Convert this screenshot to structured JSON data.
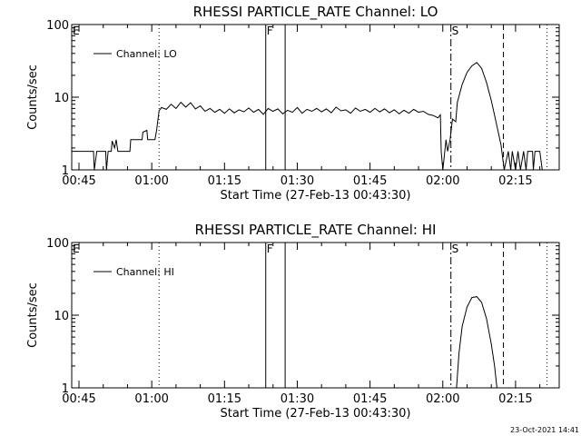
{
  "chart_data": [
    {
      "type": "line",
      "title": "RHESSI PARTICLE_RATE Channel: LO",
      "xlabel": "Start Time (27-Feb-13 00:43:30)",
      "ylabel": "Counts/sec",
      "yscale": "log",
      "ylim": [
        1,
        100
      ],
      "xlim": [
        "00:43:30",
        "02:24:00"
      ],
      "yticks": [
        "1",
        "10",
        "100"
      ],
      "xticks": [
        "00:45",
        "01:00",
        "01:15",
        "01:30",
        "01:45",
        "02:00",
        "02:15"
      ],
      "legend": {
        "label": "Channel: LO",
        "position": "top-left"
      },
      "grid": false,
      "markers": [
        {
          "label": "E",
          "time": "00:43:30",
          "style": "solid"
        },
        {
          "label": "",
          "time": "01:01:30",
          "style": "dotted"
        },
        {
          "label": "F",
          "time": "01:23:30",
          "style": "solid"
        },
        {
          "label": "",
          "time": "01:27:30",
          "style": "solid"
        },
        {
          "label": "S",
          "time": "02:01:40",
          "style": "dash-dot"
        },
        {
          "label": "",
          "time": "02:12:30",
          "style": "dashed"
        },
        {
          "label": "",
          "time": "02:21:30",
          "style": "dotted"
        }
      ],
      "series": [
        {
          "name": "Channel: LO",
          "points": [
            [
              "00:43:30",
              1.8
            ],
            [
              "00:48:00",
              1.8
            ],
            [
              "00:48:10",
              1.0
            ],
            [
              "00:48:40",
              1.8
            ],
            [
              "00:50:30",
              1.8
            ],
            [
              "00:50:40",
              1.0
            ],
            [
              "00:51:00",
              1.8
            ],
            [
              "00:51:40",
              1.8
            ],
            [
              "00:51:50",
              2.5
            ],
            [
              "00:52:20",
              2.0
            ],
            [
              "00:52:40",
              2.6
            ],
            [
              "00:53:00",
              1.8
            ],
            [
              "00:55:30",
              1.8
            ],
            [
              "00:55:40",
              2.6
            ],
            [
              "00:58:00",
              2.6
            ],
            [
              "00:58:10",
              3.3
            ],
            [
              "00:59:00",
              3.5
            ],
            [
              "00:59:10",
              2.6
            ],
            [
              "01:00:40",
              2.6
            ],
            [
              "01:01:00",
              3.5
            ],
            [
              "01:01:30",
              6.5
            ],
            [
              "01:02:00",
              7.2
            ],
            [
              "01:03:00",
              6.8
            ],
            [
              "01:04:00",
              8.0
            ],
            [
              "01:05:00",
              7.0
            ],
            [
              "01:06:00",
              8.5
            ],
            [
              "01:07:00",
              7.3
            ],
            [
              "01:08:00",
              8.4
            ],
            [
              "01:09:00",
              6.9
            ],
            [
              "01:10:00",
              7.6
            ],
            [
              "01:11:00",
              6.4
            ],
            [
              "01:12:00",
              7.0
            ],
            [
              "01:13:00",
              6.2
            ],
            [
              "01:14:00",
              6.8
            ],
            [
              "01:15:00",
              6.0
            ],
            [
              "01:16:00",
              6.9
            ],
            [
              "01:17:00",
              6.1
            ],
            [
              "01:18:00",
              6.7
            ],
            [
              "01:19:00",
              6.3
            ],
            [
              "01:20:00",
              7.1
            ],
            [
              "01:21:00",
              6.2
            ],
            [
              "01:22:00",
              6.8
            ],
            [
              "01:23:00",
              5.8
            ],
            [
              "01:24:00",
              7.0
            ],
            [
              "01:25:00",
              6.4
            ],
            [
              "01:26:00",
              6.9
            ],
            [
              "01:27:00",
              5.9
            ],
            [
              "01:28:00",
              6.6
            ],
            [
              "01:29:00",
              6.2
            ],
            [
              "01:30:00",
              7.2
            ],
            [
              "01:31:00",
              6.0
            ],
            [
              "01:32:00",
              6.8
            ],
            [
              "01:33:00",
              6.4
            ],
            [
              "01:34:00",
              7.0
            ],
            [
              "01:35:00",
              6.3
            ],
            [
              "01:36:00",
              6.9
            ],
            [
              "01:37:00",
              6.1
            ],
            [
              "01:38:00",
              7.3
            ],
            [
              "01:39:00",
              6.5
            ],
            [
              "01:40:00",
              6.7
            ],
            [
              "01:41:00",
              6.0
            ],
            [
              "01:42:00",
              7.1
            ],
            [
              "01:43:00",
              6.4
            ],
            [
              "01:44:00",
              6.8
            ],
            [
              "01:45:00",
              6.2
            ],
            [
              "01:46:00",
              7.0
            ],
            [
              "01:47:00",
              6.3
            ],
            [
              "01:48:00",
              6.9
            ],
            [
              "01:49:00",
              6.1
            ],
            [
              "01:50:00",
              6.7
            ],
            [
              "01:51:00",
              5.9
            ],
            [
              "01:52:00",
              6.6
            ],
            [
              "01:53:00",
              6.0
            ],
            [
              "01:54:00",
              6.8
            ],
            [
              "01:55:00",
              6.2
            ],
            [
              "01:56:00",
              6.4
            ],
            [
              "01:57:00",
              5.8
            ],
            [
              "01:58:00",
              5.6
            ],
            [
              "01:59:00",
              5.2
            ],
            [
              "01:59:30",
              5.7
            ],
            [
              "01:59:40",
              1.8
            ],
            [
              "02:00:00",
              1.0
            ],
            [
              "02:00:40",
              2.6
            ],
            [
              "02:01:00",
              1.8
            ],
            [
              "02:01:30",
              2.6
            ],
            [
              "02:02:00",
              5.0
            ],
            [
              "02:02:40",
              4.6
            ],
            [
              "02:03:00",
              8.5
            ],
            [
              "02:04:00",
              15.0
            ],
            [
              "02:05:00",
              22.0
            ],
            [
              "02:06:00",
              27.0
            ],
            [
              "02:07:00",
              30.0
            ],
            [
              "02:08:00",
              25.0
            ],
            [
              "02:09:00",
              16.0
            ],
            [
              "02:10:00",
              9.0
            ],
            [
              "02:11:00",
              4.5
            ],
            [
              "02:12:00",
              2.2
            ],
            [
              "02:12:40",
              1.0
            ],
            [
              "02:13:30",
              1.8
            ],
            [
              "02:14:00",
              1.0
            ],
            [
              "02:14:20",
              1.8
            ],
            [
              "02:15:00",
              1.0
            ],
            [
              "02:15:30",
              1.8
            ],
            [
              "02:16:00",
              1.0
            ],
            [
              "02:16:40",
              1.8
            ],
            [
              "02:17:10",
              1.0
            ],
            [
              "02:17:30",
              1.8
            ],
            [
              "02:18:30",
              1.8
            ],
            [
              "02:18:40",
              1.0
            ],
            [
              "02:19:00",
              1.8
            ],
            [
              "02:20:00",
              1.8
            ],
            [
              "02:20:30",
              1.0
            ]
          ]
        }
      ]
    },
    {
      "type": "line",
      "title": "RHESSI PARTICLE_RATE Channel: HI",
      "xlabel": "Start Time (27-Feb-13 00:43:30)",
      "ylabel": "Counts/sec",
      "yscale": "log",
      "ylim": [
        1,
        100
      ],
      "xlim": [
        "00:43:30",
        "02:24:00"
      ],
      "yticks": [
        "1",
        "10",
        "100"
      ],
      "xticks": [
        "00:45",
        "01:00",
        "01:15",
        "01:30",
        "01:45",
        "02:00",
        "02:15"
      ],
      "legend": {
        "label": "Channel: HI",
        "position": "top-left"
      },
      "grid": false,
      "markers": [
        {
          "label": "E",
          "time": "00:43:30",
          "style": "solid"
        },
        {
          "label": "",
          "time": "01:01:30",
          "style": "dotted"
        },
        {
          "label": "F",
          "time": "01:23:30",
          "style": "solid"
        },
        {
          "label": "",
          "time": "01:27:30",
          "style": "solid"
        },
        {
          "label": "S",
          "time": "02:01:40",
          "style": "dash-dot"
        },
        {
          "label": "",
          "time": "02:12:30",
          "style": "dashed"
        },
        {
          "label": "",
          "time": "02:21:30",
          "style": "dotted"
        }
      ],
      "series": [
        {
          "name": "Channel: HI",
          "points": [
            [
              "02:02:50",
              1.0
            ],
            [
              "02:03:20",
              3.0
            ],
            [
              "02:04:00",
              7.0
            ],
            [
              "02:05:00",
              13.0
            ],
            [
              "02:06:00",
              17.5
            ],
            [
              "02:07:00",
              18.0
            ],
            [
              "02:08:00",
              15.0
            ],
            [
              "02:09:00",
              9.0
            ],
            [
              "02:10:00",
              4.0
            ],
            [
              "02:10:40",
              2.0
            ],
            [
              "02:11:10",
              1.0
            ]
          ]
        }
      ]
    }
  ],
  "footer": {
    "stamp": "23-Oct-2021 14:41"
  }
}
